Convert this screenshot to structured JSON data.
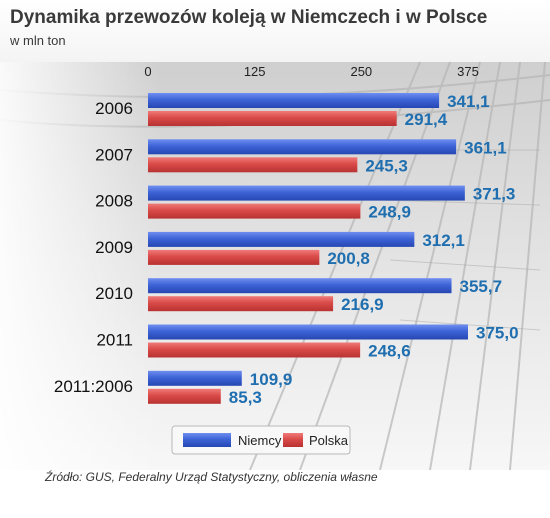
{
  "title": "Dynamika przewozów koleją w Niemczech i w Polsce",
  "subtitle": "w mln ton",
  "source": "Źródło: GUS, Federalny Urząd Statystyczny, obliczenia własne",
  "colors": {
    "niemcy": "#3d63d6",
    "polska": "#d94a48",
    "label": "#1f6fb0",
    "category": "#111111"
  },
  "chart_data": {
    "type": "bar",
    "orientation": "horizontal",
    "categories": [
      "2006",
      "2007",
      "2008",
      "2009",
      "2010",
      "2011",
      "2011:2006"
    ],
    "series": [
      {
        "name": "Niemcy",
        "values": [
          341.1,
          361.1,
          371.3,
          312.1,
          355.7,
          375.0,
          109.9
        ],
        "labels": [
          "341,1",
          "361,1",
          "371,3",
          "312,1",
          "355,7",
          "375,0",
          "109,9"
        ]
      },
      {
        "name": "Polska",
        "values": [
          291.4,
          245.3,
          248.9,
          200.8,
          216.9,
          248.6,
          85.3
        ],
        "labels": [
          "291,4",
          "245,3",
          "248,9",
          "200,8",
          "216,9",
          "248,6",
          "85,3"
        ]
      }
    ],
    "xticks": [
      "0",
      "125",
      "250",
      "375"
    ],
    "xlim": [
      0,
      375
    ],
    "legend": "bottom",
    "grid": false
  }
}
